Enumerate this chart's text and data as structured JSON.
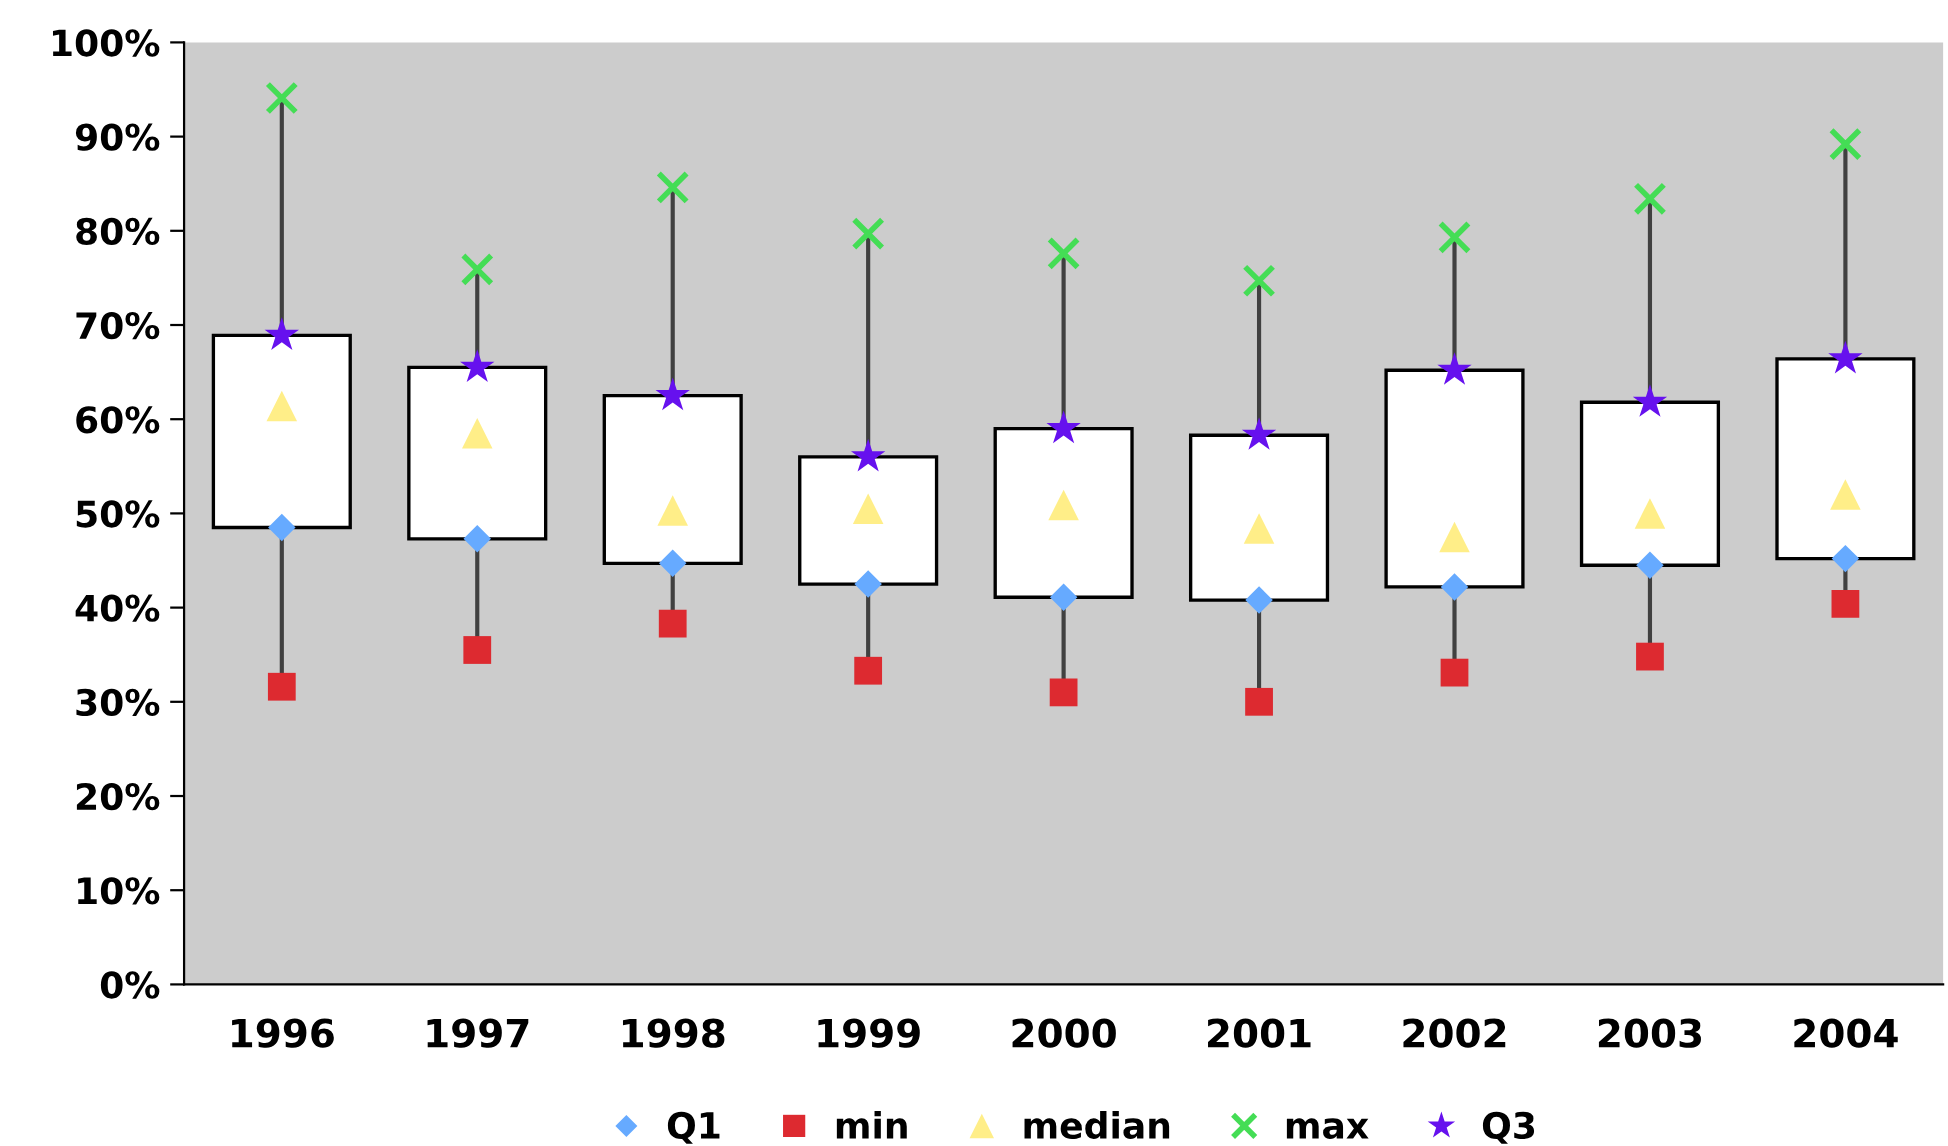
{
  "chart_data": {
    "type": "box",
    "categories": [
      "1996",
      "1997",
      "1998",
      "1999",
      "2000",
      "2001",
      "2002",
      "2003",
      "2004"
    ],
    "boxes": [
      {
        "low": 31.6,
        "q1": 48.5,
        "q3": 68.9,
        "high": 94.1
      },
      {
        "low": 35.5,
        "q1": 47.3,
        "q3": 65.5,
        "high": 75.9
      },
      {
        "low": 38.3,
        "q1": 44.7,
        "q3": 62.5,
        "high": 84.6
      },
      {
        "low": 33.3,
        "q1": 42.5,
        "q3": 56.0,
        "high": 79.7
      },
      {
        "low": 31.0,
        "q1": 41.1,
        "q3": 59.0,
        "high": 77.6
      },
      {
        "low": 30.0,
        "q1": 40.8,
        "q3": 58.3,
        "high": 74.7
      },
      {
        "low": 33.1,
        "q1": 42.2,
        "q3": 65.2,
        "high": 79.3
      },
      {
        "low": 34.8,
        "q1": 44.5,
        "q3": 61.8,
        "high": 83.4
      },
      {
        "low": 40.4,
        "q1": 45.2,
        "q3": 66.4,
        "high": 89.2
      }
    ],
    "series": [
      {
        "name": "Q1",
        "type": "scatter",
        "marker": "diamond",
        "color": "#66aaff",
        "values": [
          48.5,
          47.3,
          44.7,
          42.5,
          41.1,
          40.8,
          42.2,
          44.5,
          45.2
        ]
      },
      {
        "name": "min",
        "type": "scatter",
        "marker": "square",
        "color": "#dd2a30",
        "values": [
          31.6,
          35.5,
          38.3,
          33.3,
          31.0,
          30.0,
          33.1,
          34.8,
          40.4
        ]
      },
      {
        "name": "median",
        "type": "scatter",
        "marker": "triangle",
        "color": "#ffee88",
        "values": [
          61.4,
          58.5,
          50.3,
          50.5,
          50.9,
          48.4,
          47.5,
          50.0,
          52.0
        ]
      },
      {
        "name": "max",
        "type": "scatter",
        "marker": "cross",
        "color": "#44dd55",
        "values": [
          94.1,
          75.9,
          84.6,
          79.7,
          77.6,
          74.7,
          79.3,
          83.4,
          89.2
        ]
      },
      {
        "name": "Q3",
        "type": "scatter",
        "marker": "star",
        "color": "#6611ee",
        "values": [
          68.9,
          65.5,
          62.5,
          56.0,
          59.0,
          58.3,
          65.2,
          61.8,
          66.4
        ]
      }
    ],
    "ylim": [
      0,
      100
    ],
    "yticks": [
      {
        "value": 0,
        "label": "0%"
      },
      {
        "value": 10,
        "label": "10%"
      },
      {
        "value": 20,
        "label": "20%"
      },
      {
        "value": 30,
        "label": "30%"
      },
      {
        "value": 40,
        "label": "40%"
      },
      {
        "value": 50,
        "label": "50%"
      },
      {
        "value": 60,
        "label": "60%"
      },
      {
        "value": 70,
        "label": "70%"
      },
      {
        "value": 80,
        "label": "80%"
      },
      {
        "value": 90,
        "label": "90%"
      },
      {
        "value": 100,
        "label": "100%"
      }
    ],
    "grid": false,
    "legend": "bottom"
  }
}
